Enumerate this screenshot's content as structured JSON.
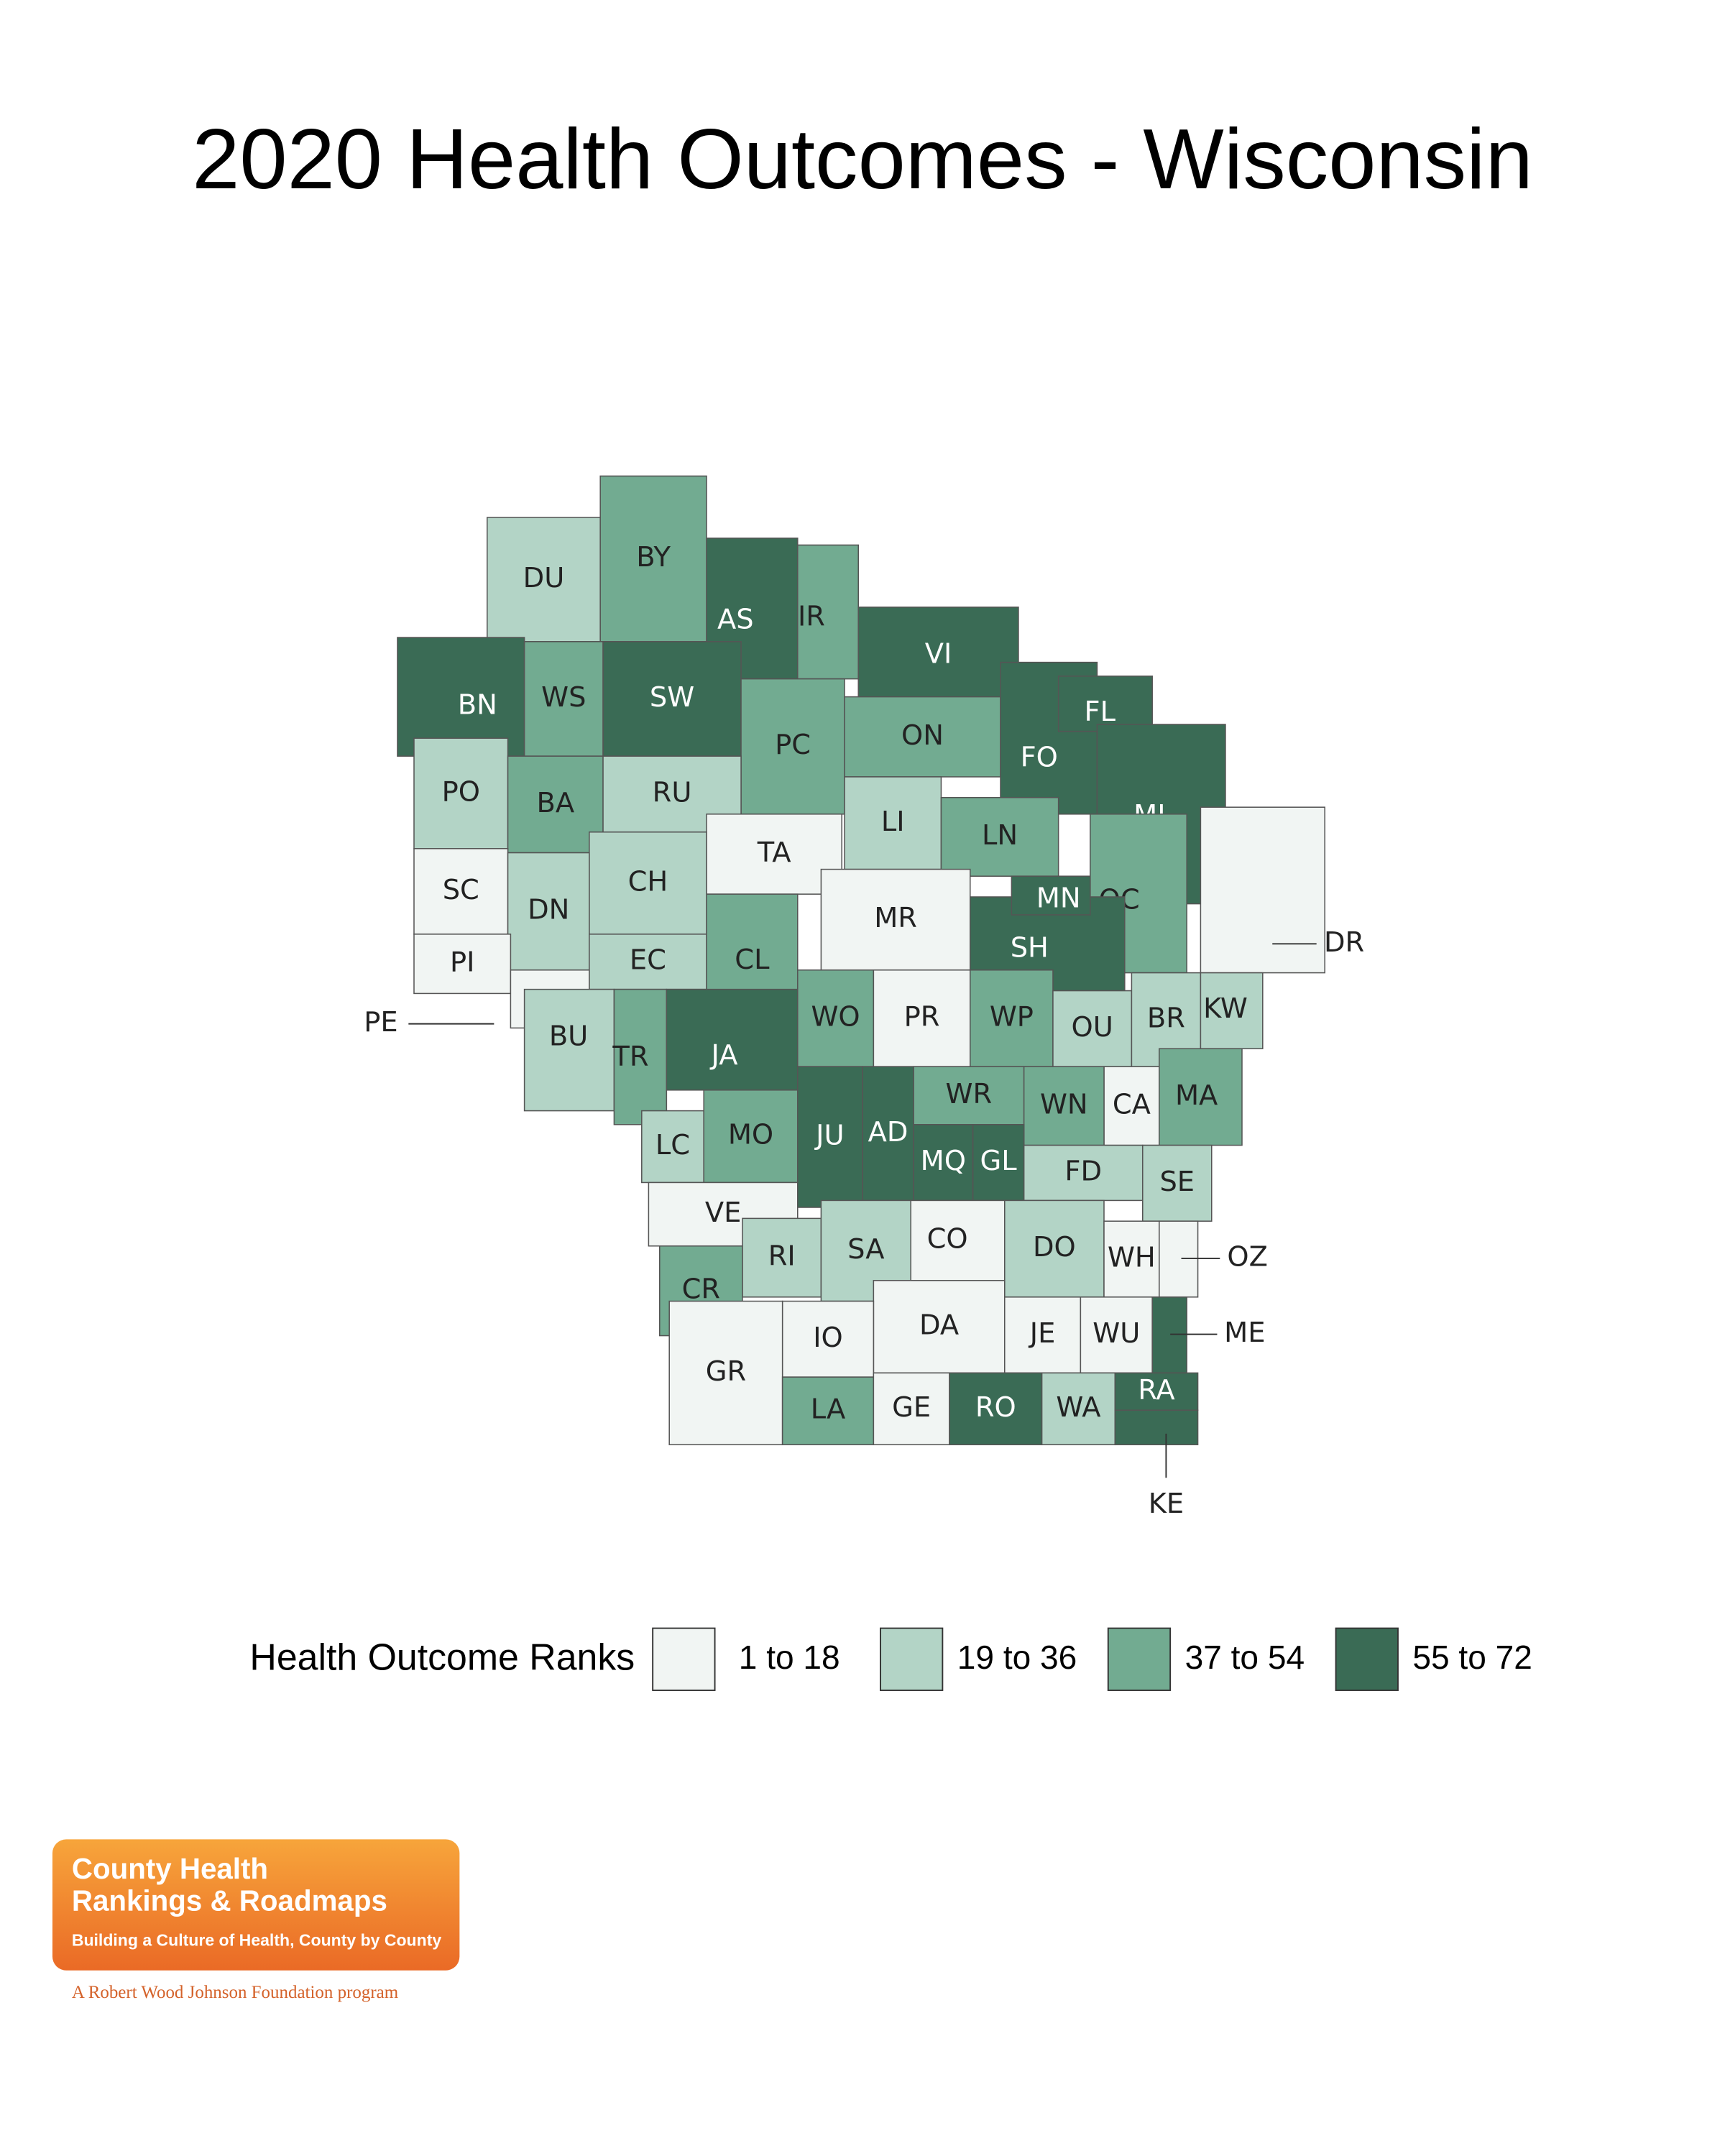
{
  "title": "2020 Health Outcomes - Wisconsin",
  "legend": {
    "title": "Health Outcome Ranks",
    "groups": [
      {
        "label": "1 to 18",
        "color": "#f1f5f3"
      },
      {
        "label": "19 to 36",
        "color": "#b3d4c6"
      },
      {
        "label": "37 to 54",
        "color": "#72ab91"
      },
      {
        "label": "55 to 72",
        "color": "#3a6b55"
      }
    ]
  },
  "counties": [
    {
      "label": "DU",
      "group": "19 to 36"
    },
    {
      "label": "BY",
      "group": "37 to 54"
    },
    {
      "label": "AS",
      "group": "55 to 72"
    },
    {
      "label": "IR",
      "group": "37 to 54"
    },
    {
      "label": "VI",
      "group": "55 to 72"
    },
    {
      "label": "BN",
      "group": "55 to 72"
    },
    {
      "label": "WS",
      "group": "37 to 54"
    },
    {
      "label": "SW",
      "group": "55 to 72"
    },
    {
      "label": "PC",
      "group": "37 to 54"
    },
    {
      "label": "ON",
      "group": "37 to 54"
    },
    {
      "label": "FO",
      "group": "55 to 72"
    },
    {
      "label": "FL",
      "group": "55 to 72"
    },
    {
      "label": "MI",
      "group": "55 to 72"
    },
    {
      "label": "PO",
      "group": "19 to 36"
    },
    {
      "label": "BA",
      "group": "37 to 54"
    },
    {
      "label": "RU",
      "group": "19 to 36"
    },
    {
      "label": "LI",
      "group": "19 to 36"
    },
    {
      "label": "TA",
      "group": "1 to 18"
    },
    {
      "label": "LN",
      "group": "37 to 54"
    },
    {
      "label": "CH",
      "group": "19 to 36"
    },
    {
      "label": "SC",
      "group": "1 to 18"
    },
    {
      "label": "DN",
      "group": "19 to 36"
    },
    {
      "label": "MR",
      "group": "1 to 18"
    },
    {
      "label": "OC",
      "group": "37 to 54"
    },
    {
      "label": "SH",
      "group": "55 to 72"
    },
    {
      "label": "MN",
      "group": "55 to 72"
    },
    {
      "label": "PI",
      "group": "1 to 18"
    },
    {
      "label": "EC",
      "group": "19 to 36"
    },
    {
      "label": "CL",
      "group": "37 to 54"
    },
    {
      "label": "DR",
      "group": "1 to 18"
    },
    {
      "label": "PE",
      "group": "1 to 18"
    },
    {
      "label": "BU",
      "group": "19 to 36"
    },
    {
      "label": "TR",
      "group": "37 to 54"
    },
    {
      "label": "JA",
      "group": "55 to 72"
    },
    {
      "label": "WO",
      "group": "37 to 54"
    },
    {
      "label": "PR",
      "group": "1 to 18"
    },
    {
      "label": "WP",
      "group": "37 to 54"
    },
    {
      "label": "OU",
      "group": "19 to 36"
    },
    {
      "label": "BR",
      "group": "19 to 36"
    },
    {
      "label": "KW",
      "group": "19 to 36"
    },
    {
      "label": "CA",
      "group": "1 to 18"
    },
    {
      "label": "MA",
      "group": "37 to 54"
    },
    {
      "label": "WR",
      "group": "37 to 54"
    },
    {
      "label": "WN",
      "group": "37 to 54"
    },
    {
      "label": "LC",
      "group": "19 to 36"
    },
    {
      "label": "MO",
      "group": "37 to 54"
    },
    {
      "label": "JU",
      "group": "55 to 72"
    },
    {
      "label": "AD",
      "group": "55 to 72"
    },
    {
      "label": "MQ",
      "group": "55 to 72"
    },
    {
      "label": "GL",
      "group": "55 to 72"
    },
    {
      "label": "FD",
      "group": "19 to 36"
    },
    {
      "label": "SE",
      "group": "19 to 36"
    },
    {
      "label": "VE",
      "group": "1 to 18"
    },
    {
      "label": "CO",
      "group": "1 to 18"
    },
    {
      "label": "DO",
      "group": "19 to 36"
    },
    {
      "label": "WH",
      "group": "1 to 18"
    },
    {
      "label": "OZ",
      "group": "1 to 18"
    },
    {
      "label": "RI",
      "group": "19 to 36"
    },
    {
      "label": "SA",
      "group": "19 to 36"
    },
    {
      "label": "CR",
      "group": "37 to 54"
    },
    {
      "label": "DA",
      "group": "1 to 18"
    },
    {
      "label": "IO",
      "group": "1 to 18"
    },
    {
      "label": "GR",
      "group": "1 to 18"
    },
    {
      "label": "JE",
      "group": "1 to 18"
    },
    {
      "label": "WU",
      "group": "1 to 18"
    },
    {
      "label": "ME",
      "group": "55 to 72"
    },
    {
      "label": "LA",
      "group": "37 to 54"
    },
    {
      "label": "GE",
      "group": "1 to 18"
    },
    {
      "label": "RO",
      "group": "55 to 72"
    },
    {
      "label": "WA",
      "group": "19 to 36"
    },
    {
      "label": "RA",
      "group": "55 to 72"
    },
    {
      "label": "KE",
      "group": "55 to 72"
    }
  ],
  "logo": {
    "line1": "County Health",
    "line2": "Rankings & Roadmaps",
    "tagline": "Building a Culture of Health, County by County",
    "footer": "A Robert Wood Johnson Foundation program"
  }
}
